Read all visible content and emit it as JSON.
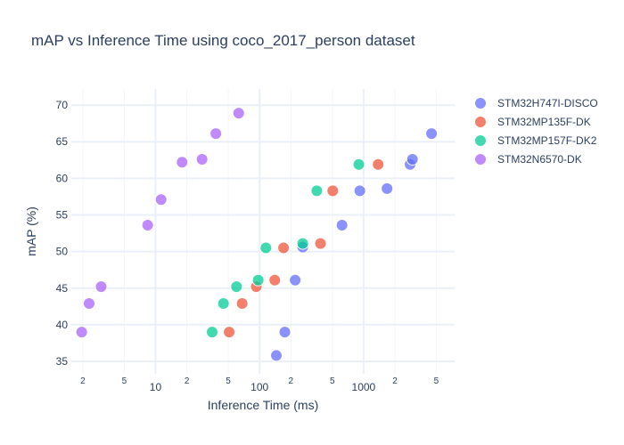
{
  "chart_data": {
    "type": "scatter",
    "title": "mAP vs Inference Time using coco_2017_person dataset",
    "xlabel": "Inference Time (ms)",
    "ylabel": "mAP (%)",
    "x_scale": "log",
    "xlim": [
      1.55,
      7500
    ],
    "ylim": [
      33.3,
      72.2
    ],
    "x_major_ticks": [
      {
        "value": 10,
        "label": "10"
      },
      {
        "value": 100,
        "label": "100"
      },
      {
        "value": 1000,
        "label": "1000"
      }
    ],
    "x_minor_ticks": [
      {
        "value": 2,
        "label": "2"
      },
      {
        "value": 5,
        "label": "5"
      },
      {
        "value": 20,
        "label": "2"
      },
      {
        "value": 50,
        "label": "5"
      },
      {
        "value": 200,
        "label": "2"
      },
      {
        "value": 500,
        "label": "5"
      },
      {
        "value": 2000,
        "label": "2"
      },
      {
        "value": 5000,
        "label": "5"
      }
    ],
    "y_ticks": [
      35,
      40,
      45,
      50,
      55,
      60,
      65,
      70
    ],
    "grid": true,
    "legend_position": "top-right",
    "series": [
      {
        "name": "STM32H747I-DISCO",
        "color": "#636efa",
        "points": [
          {
            "x": 145,
            "y": 35.8
          },
          {
            "x": 175,
            "y": 39.0
          },
          {
            "x": 220,
            "y": 46.1
          },
          {
            "x": 260,
            "y": 50.6
          },
          {
            "x": 620,
            "y": 53.6
          },
          {
            "x": 920,
            "y": 58.3
          },
          {
            "x": 1680,
            "y": 58.6
          },
          {
            "x": 2800,
            "y": 61.9
          },
          {
            "x": 2950,
            "y": 62.6
          },
          {
            "x": 4500,
            "y": 66.1
          }
        ]
      },
      {
        "name": "STM32MP135F-DK",
        "color": "#ef553b",
        "points": [
          {
            "x": 51,
            "y": 39.0
          },
          {
            "x": 68,
            "y": 42.9
          },
          {
            "x": 93,
            "y": 45.2
          },
          {
            "x": 140,
            "y": 46.1
          },
          {
            "x": 170,
            "y": 50.5
          },
          {
            "x": 385,
            "y": 51.1
          },
          {
            "x": 505,
            "y": 58.3
          },
          {
            "x": 1380,
            "y": 61.9
          }
        ]
      },
      {
        "name": "STM32MP157F-DK2",
        "color": "#00cc96",
        "points": [
          {
            "x": 35,
            "y": 39.0
          },
          {
            "x": 45,
            "y": 42.9
          },
          {
            "x": 60,
            "y": 45.2
          },
          {
            "x": 97,
            "y": 46.1
          },
          {
            "x": 115,
            "y": 50.5
          },
          {
            "x": 260,
            "y": 51.1
          },
          {
            "x": 355,
            "y": 58.3
          },
          {
            "x": 900,
            "y": 61.9
          }
        ]
      },
      {
        "name": "STM32N6570-DK",
        "color": "#ab63fa",
        "points": [
          {
            "x": 1.95,
            "y": 39.0
          },
          {
            "x": 2.3,
            "y": 42.9
          },
          {
            "x": 3.0,
            "y": 45.2
          },
          {
            "x": 8.4,
            "y": 53.6
          },
          {
            "x": 11.3,
            "y": 57.1
          },
          {
            "x": 18.0,
            "y": 62.2
          },
          {
            "x": 28.0,
            "y": 62.6
          },
          {
            "x": 38.0,
            "y": 66.1
          },
          {
            "x": 63.0,
            "y": 68.9
          }
        ]
      }
    ]
  }
}
